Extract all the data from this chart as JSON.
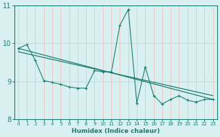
{
  "xlabel": "Humidex (Indice chaleur)",
  "bg_color": "#d8f0f0",
  "line_color": "#1a7a6e",
  "grid_color": "#e8c8c8",
  "xlim": [
    -0.5,
    23.5
  ],
  "ylim": [
    8,
    11
  ],
  "yticks": [
    8,
    9,
    10,
    11
  ],
  "xticks": [
    0,
    1,
    2,
    3,
    4,
    5,
    6,
    7,
    8,
    9,
    10,
    11,
    12,
    13,
    14,
    15,
    16,
    17,
    18,
    19,
    20,
    21,
    22,
    23
  ],
  "data_x": [
    0,
    1,
    2,
    3,
    4,
    5,
    6,
    7,
    8,
    9,
    10,
    11,
    12,
    13,
    14,
    15,
    16,
    17,
    18,
    19,
    20,
    21,
    22,
    23
  ],
  "data_y": [
    9.87,
    9.97,
    9.55,
    9.02,
    8.97,
    8.92,
    8.85,
    8.82,
    8.82,
    9.28,
    9.25,
    9.25,
    10.48,
    10.9,
    8.42,
    9.38,
    8.62,
    8.4,
    8.52,
    8.62,
    8.5,
    8.45,
    8.52,
    8.52
  ],
  "regline1_x": [
    0,
    23
  ],
  "regline1_y": [
    9.87,
    8.52
  ],
  "regline2_x": [
    0,
    23
  ],
  "regline2_y": [
    9.78,
    8.62
  ]
}
